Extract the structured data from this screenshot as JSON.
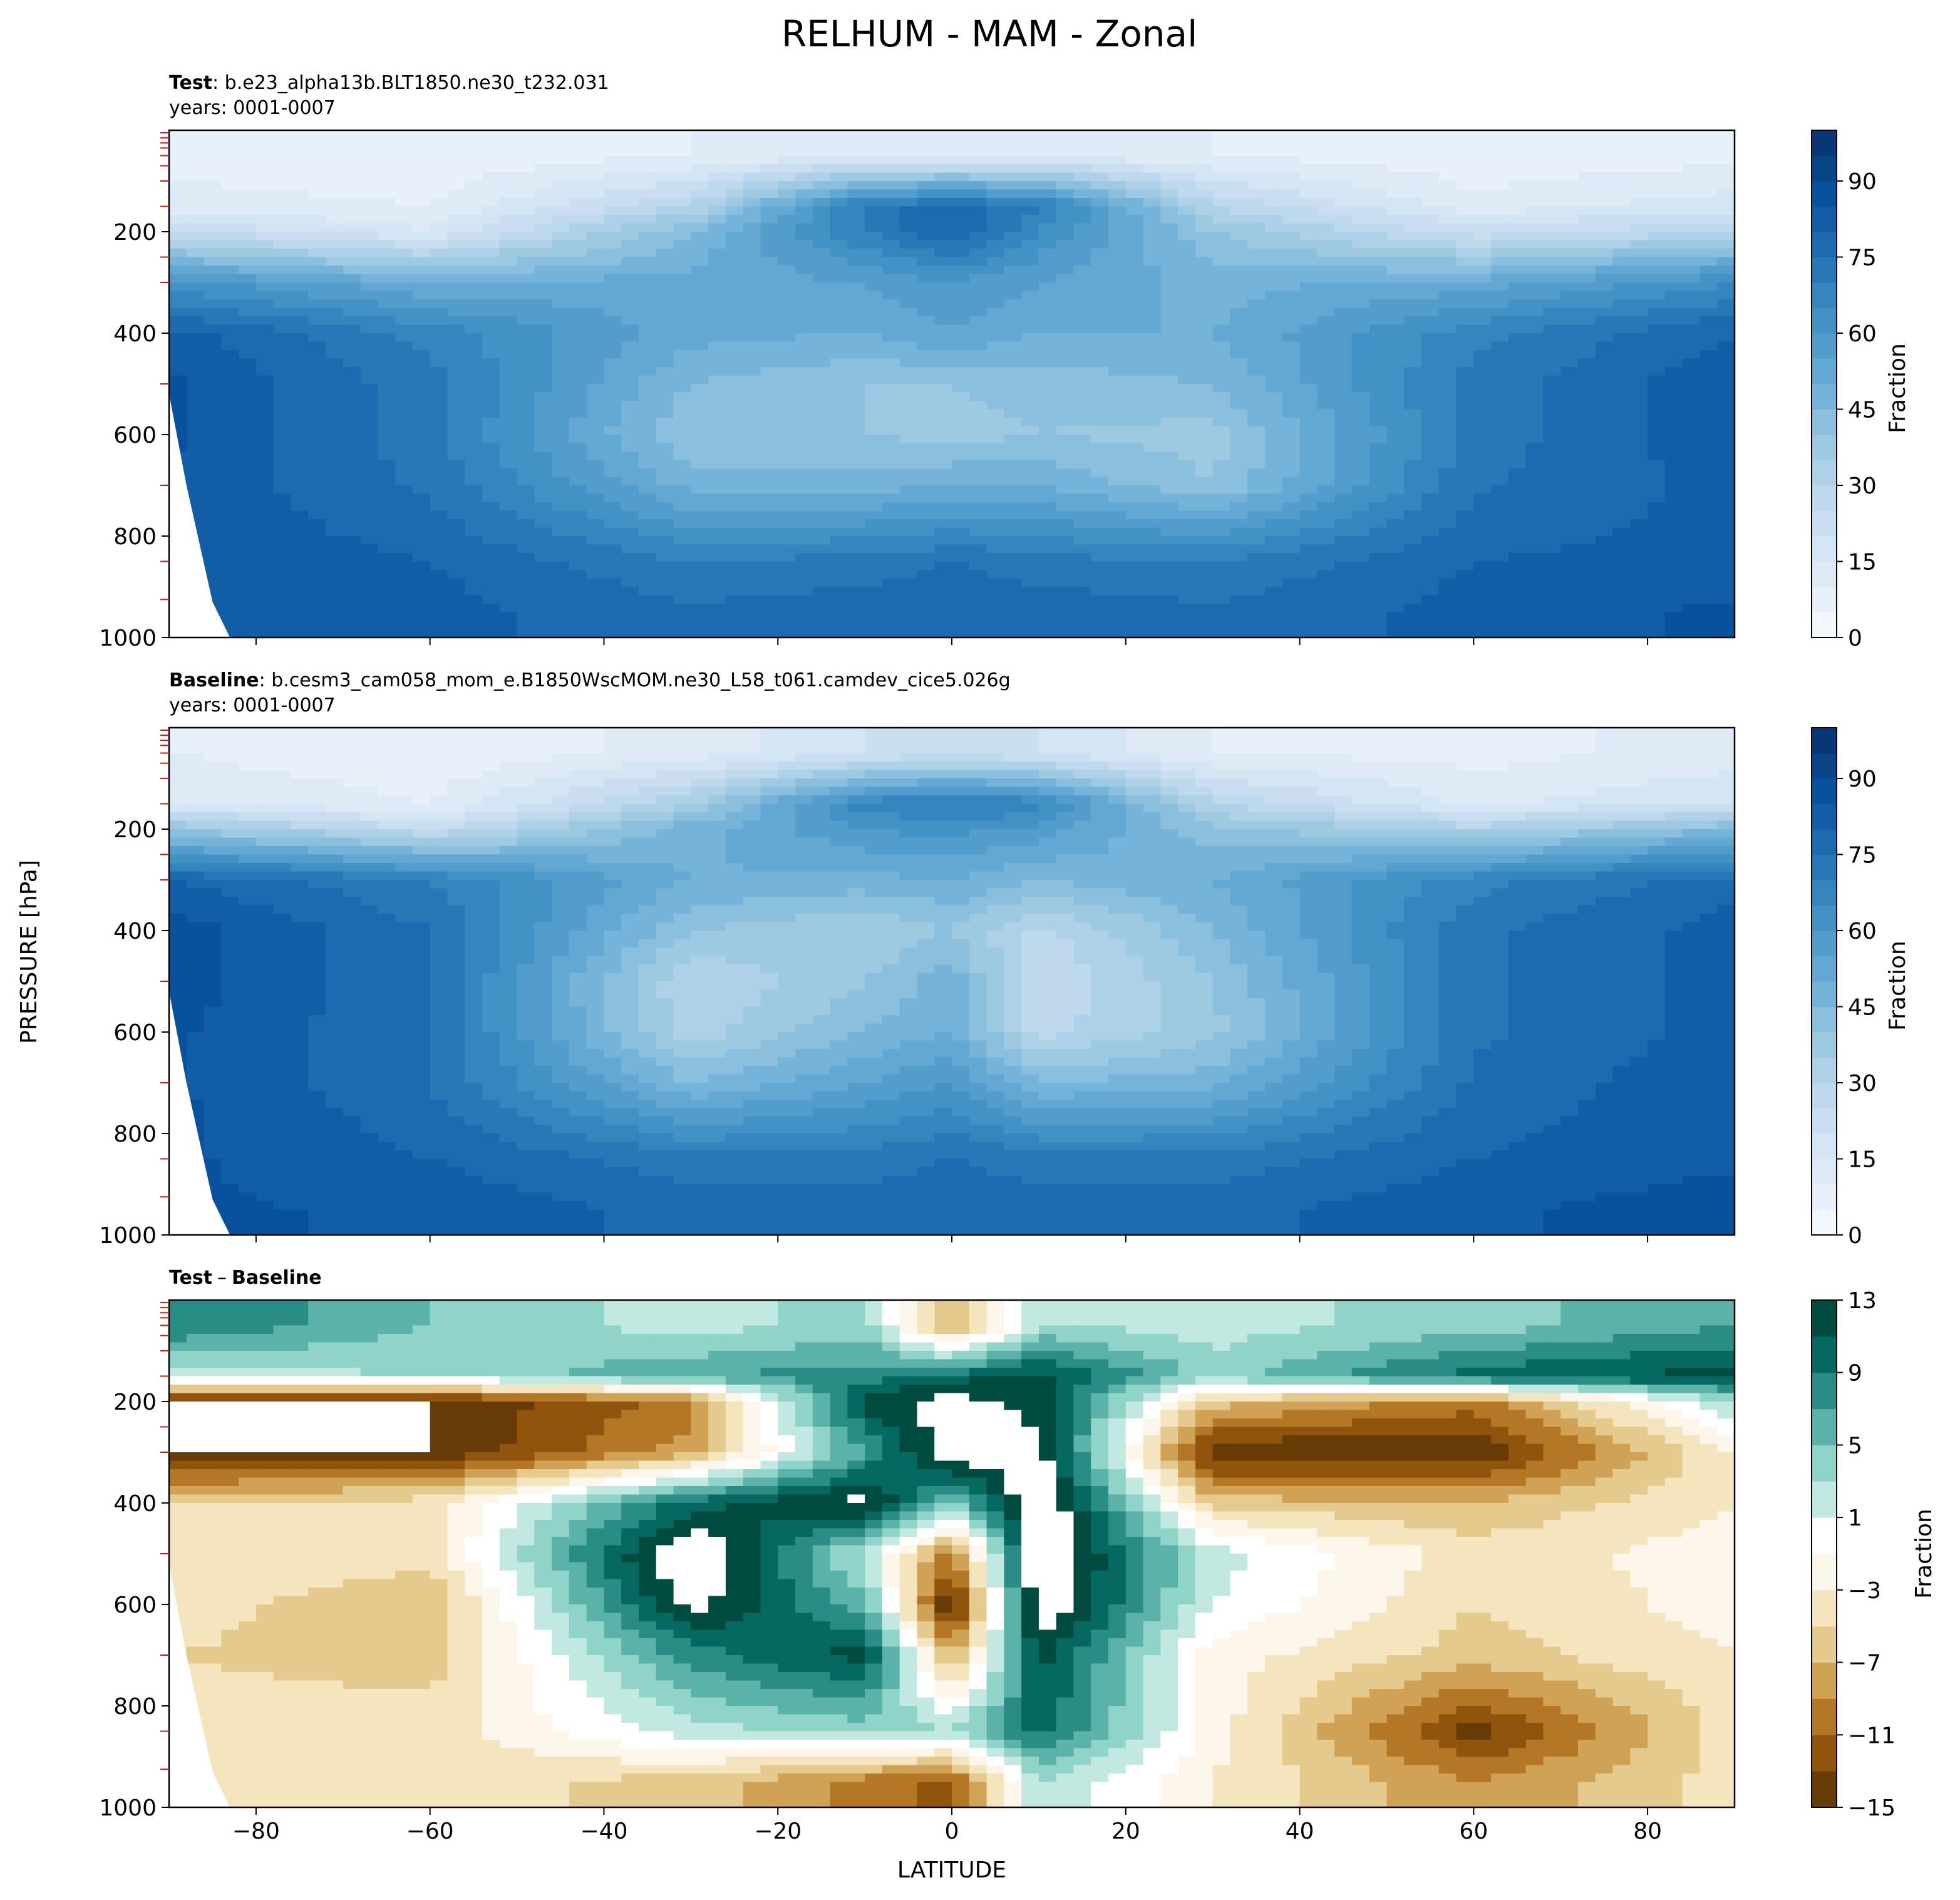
{
  "figure": {
    "title": "RELHUM - MAM - Zonal",
    "ylabel": "PRESSURE [hPa]",
    "xlabel": "LATITUDE"
  },
  "chart_data": [
    {
      "type": "heatmap",
      "panel": "test",
      "title_bold": "Test",
      "title_rest": ": b.e23_alpha13b.BLT1850.ne30_t232.031",
      "subtitle": "years: 0001-0007",
      "xlim": [
        -90,
        90
      ],
      "ylim": [
        1000,
        0
      ],
      "x_ticks": [
        -80,
        -60,
        -40,
        -20,
        0,
        20,
        40,
        60,
        80
      ],
      "x_ticklabels_shown": false,
      "y_ticks": [
        200,
        400,
        600,
        800,
        1000
      ],
      "y_ticklabels": [
        "200",
        "400",
        "600",
        "800",
        "1000"
      ],
      "colorbar": {
        "label": "Fraction",
        "colormap": "Blues",
        "range": [
          0,
          100
        ],
        "ticks": [
          0,
          15,
          30,
          45,
          60,
          75,
          90
        ],
        "ticklabels": [
          "0",
          "15",
          "30",
          "45",
          "60",
          "75",
          "90"
        ]
      },
      "approx_field_description": "Dry stratosphere (< 15) above ~150 hPa; moist upper tropical maximum near 150-200 hPa; subtropical minima 30-45 at 500-700 hPa; high values 75-95 in lower troposphere and high latitudes.",
      "latitudes": [
        -90,
        -60,
        -30,
        -10,
        0,
        10,
        30,
        60,
        90
      ],
      "pressures": [
        50,
        150,
        200,
        300,
        400,
        500,
        600,
        700,
        850,
        950
      ],
      "values": [
        [
          8,
          6,
          10,
          14,
          14,
          14,
          10,
          6,
          8
        ],
        [
          12,
          10,
          30,
          72,
          78,
          72,
          30,
          12,
          18
        ],
        [
          25,
          15,
          45,
          70,
          80,
          65,
          40,
          22,
          30
        ],
        [
          62,
          50,
          52,
          55,
          60,
          55,
          48,
          52,
          65
        ],
        [
          82,
          68,
          52,
          50,
          55,
          50,
          50,
          68,
          80
        ],
        [
          86,
          72,
          45,
          40,
          40,
          42,
          45,
          72,
          84
        ],
        [
          86,
          72,
          40,
          40,
          38,
          40,
          38,
          72,
          84
        ],
        [
          84,
          74,
          48,
          48,
          50,
          50,
          40,
          74,
          82
        ],
        [
          84,
          80,
          70,
          72,
          75,
          72,
          70,
          80,
          82
        ],
        [
          84,
          82,
          76,
          78,
          80,
          78,
          76,
          82,
          86
        ]
      ]
    },
    {
      "type": "heatmap",
      "panel": "baseline",
      "title_bold": "Baseline",
      "title_rest": ": b.cesm3_cam058_mom_e.B1850WscMOM.ne30_L58_t061.camdev_cice5.026g",
      "subtitle": "years: 0001-0007",
      "xlim": [
        -90,
        90
      ],
      "ylim": [
        1000,
        0
      ],
      "x_ticks": [
        -80,
        -60,
        -40,
        -20,
        0,
        20,
        40,
        60,
        80
      ],
      "x_ticklabels_shown": false,
      "y_ticks": [
        200,
        400,
        600,
        800,
        1000
      ],
      "y_ticklabels": [
        "200",
        "400",
        "600",
        "800",
        "1000"
      ],
      "colorbar": {
        "label": "Fraction",
        "colormap": "Blues",
        "range": [
          0,
          100
        ],
        "ticks": [
          0,
          15,
          30,
          45,
          60,
          75,
          90
        ],
        "ticklabels": [
          "0",
          "15",
          "30",
          "45",
          "60",
          "75",
          "90"
        ]
      },
      "approx_field_description": "Similar to test: dry above ~150 hPa, moist tropical upper maximum near 100-150 hPa, subtropical dry lobes 20-35 near 400-600 hPa, moist lower troposphere and high latitudes 75-90.",
      "latitudes": [
        -90,
        -60,
        -30,
        -10,
        0,
        10,
        30,
        60,
        90
      ],
      "pressures": [
        50,
        150,
        200,
        300,
        400,
        500,
        600,
        700,
        850,
        950
      ],
      "values": [
        [
          10,
          6,
          12,
          20,
          22,
          20,
          10,
          8,
          12
        ],
        [
          15,
          10,
          35,
          68,
          72,
          68,
          30,
          14,
          20
        ],
        [
          40,
          25,
          48,
          60,
          62,
          58,
          42,
          32,
          45
        ],
        [
          80,
          70,
          50,
          48,
          50,
          45,
          50,
          68,
          78
        ],
        [
          88,
          75,
          40,
          35,
          40,
          28,
          45,
          74,
          82
        ],
        [
          88,
          75,
          30,
          40,
          48,
          25,
          40,
          74,
          82
        ],
        [
          86,
          75,
          32,
          45,
          50,
          28,
          38,
          74,
          82
        ],
        [
          86,
          75,
          45,
          55,
          60,
          45,
          48,
          76,
          84
        ],
        [
          86,
          80,
          72,
          72,
          75,
          72,
          72,
          80,
          84
        ],
        [
          86,
          84,
          78,
          78,
          80,
          78,
          78,
          84,
          88
        ]
      ]
    },
    {
      "type": "heatmap",
      "panel": "difference",
      "title_bold": "Test",
      "title_minus": "–",
      "title_bold2": "Baseline",
      "xlim": [
        -90,
        90
      ],
      "ylim": [
        1000,
        0
      ],
      "x_ticks": [
        -80,
        -60,
        -40,
        -20,
        0,
        20,
        40,
        60,
        80
      ],
      "x_ticklabels": [
        "−80",
        "−60",
        "−40",
        "−20",
        "0",
        "20",
        "40",
        "60",
        "80"
      ],
      "y_ticks": [
        200,
        400,
        600,
        800,
        1000
      ],
      "y_ticklabels": [
        "200",
        "400",
        "600",
        "800",
        "1000"
      ],
      "colorbar": {
        "label": "Fraction",
        "colormap": "BrBG",
        "range": [
          -15,
          13
        ],
        "ticks": [
          13,
          9,
          5,
          1,
          -3,
          -7,
          -11,
          -15
        ],
        "ticklabels": [
          "13",
          "9",
          "5",
          "1",
          "−3",
          "−7",
          "−11",
          "−15"
        ]
      },
      "approx_field_description": "Positive (teal) differences in the tropical middle/upper troposphere and polar stratosphere; strong negative (brown) bands near 150-350 hPa in mid-latitudes; negative values in the lower-troposphere subtropics and near 60N 800-950 hPa.",
      "latitudes": [
        -90,
        -60,
        -30,
        -10,
        0,
        10,
        30,
        60,
        90
      ],
      "pressures": [
        50,
        150,
        200,
        300,
        400,
        500,
        600,
        700,
        850,
        950
      ],
      "values": [
        [
          9,
          5,
          2,
          4,
          -8,
          3,
          2,
          4,
          7
        ],
        [
          2,
          3,
          7,
          8,
          10,
          12,
          4,
          10,
          12
        ],
        [
          -15,
          -15,
          -10,
          12,
          14,
          12,
          -6,
          -10,
          3
        ],
        [
          -15,
          -15,
          -8,
          7,
          15,
          14,
          -15,
          -15,
          -3
        ],
        [
          -5,
          -4,
          10,
          14,
          5,
          16,
          -6,
          -7,
          -3
        ],
        [
          -3,
          -4,
          16,
          2,
          -10,
          16,
          2,
          -4,
          -2
        ],
        [
          -4,
          -7,
          14,
          6,
          -16,
          16,
          1,
          -5,
          -2
        ],
        [
          -5,
          -6,
          8,
          12,
          -8,
          12,
          -2,
          -6,
          -3
        ],
        [
          -4,
          -4,
          2,
          4,
          3,
          10,
          -2,
          -14,
          -4
        ],
        [
          -3,
          -4,
          -6,
          -10,
          -12,
          3,
          -3,
          -9,
          -4
        ]
      ]
    }
  ]
}
